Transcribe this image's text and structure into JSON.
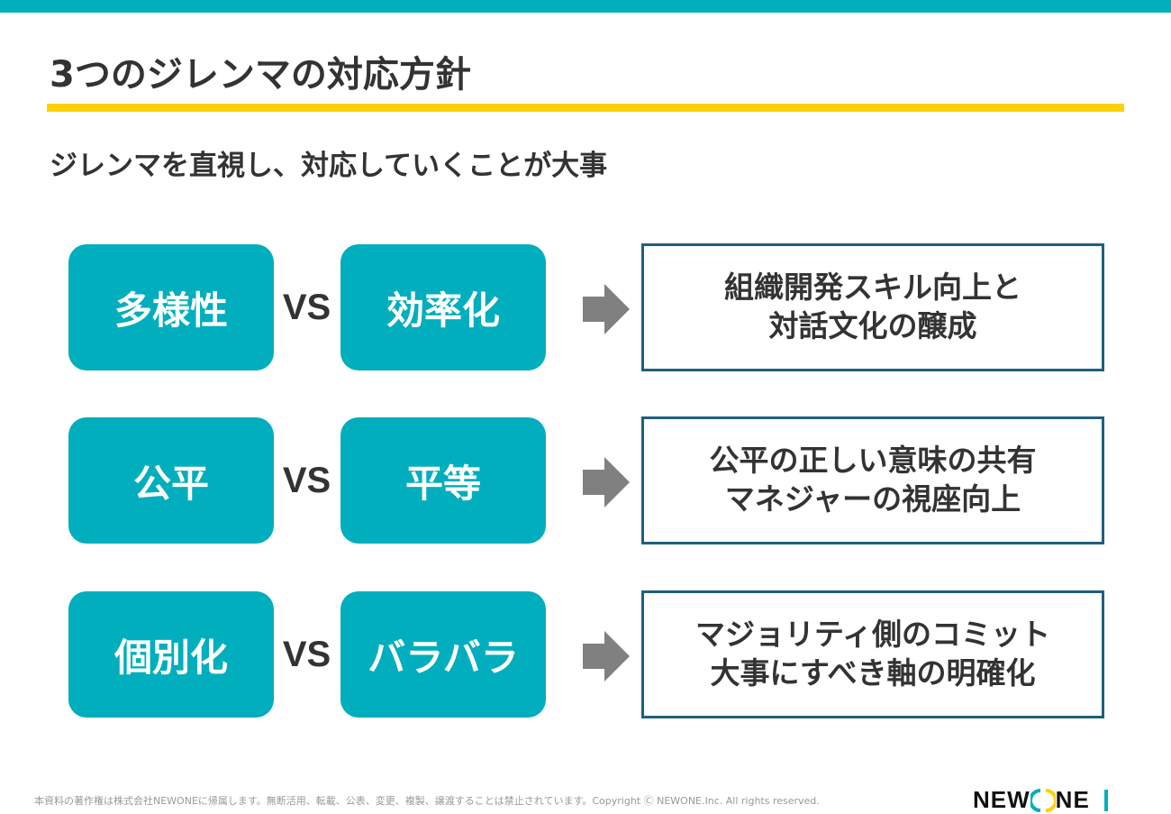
{
  "colors": {
    "accent": "#00aebd",
    "highlight": "#ffd100",
    "box_border": "#1f5f7f",
    "arrow": "#808080"
  },
  "title": "3つのジレンマの対応方針",
  "subtitle": "ジレンマを直視し、対応していくことが大事",
  "vs_label": "VS",
  "rows": [
    {
      "left": "多様性",
      "right": "効率化",
      "result": [
        "組織開発スキル向上と",
        "対話文化の醸成"
      ]
    },
    {
      "left": "公平",
      "right": "平等",
      "result": [
        "公平の正しい意味の共有",
        "マネジャーの視座向上"
      ]
    },
    {
      "left": "個別化",
      "right": "バラバラ",
      "result": [
        "マジョリティ側のコミット",
        "大事にすべき軸の明確化"
      ]
    }
  ],
  "footer": "本資料の著作権は株式会社NEWONEに帰属します。無断活用、転載、公表、変更、複製、譲渡することは禁止されています。Copyright Ⓒ NEWONE.Inc.  All rights reserved.",
  "logo": {
    "text": "NEWONE",
    "icon": "newone-logo"
  }
}
